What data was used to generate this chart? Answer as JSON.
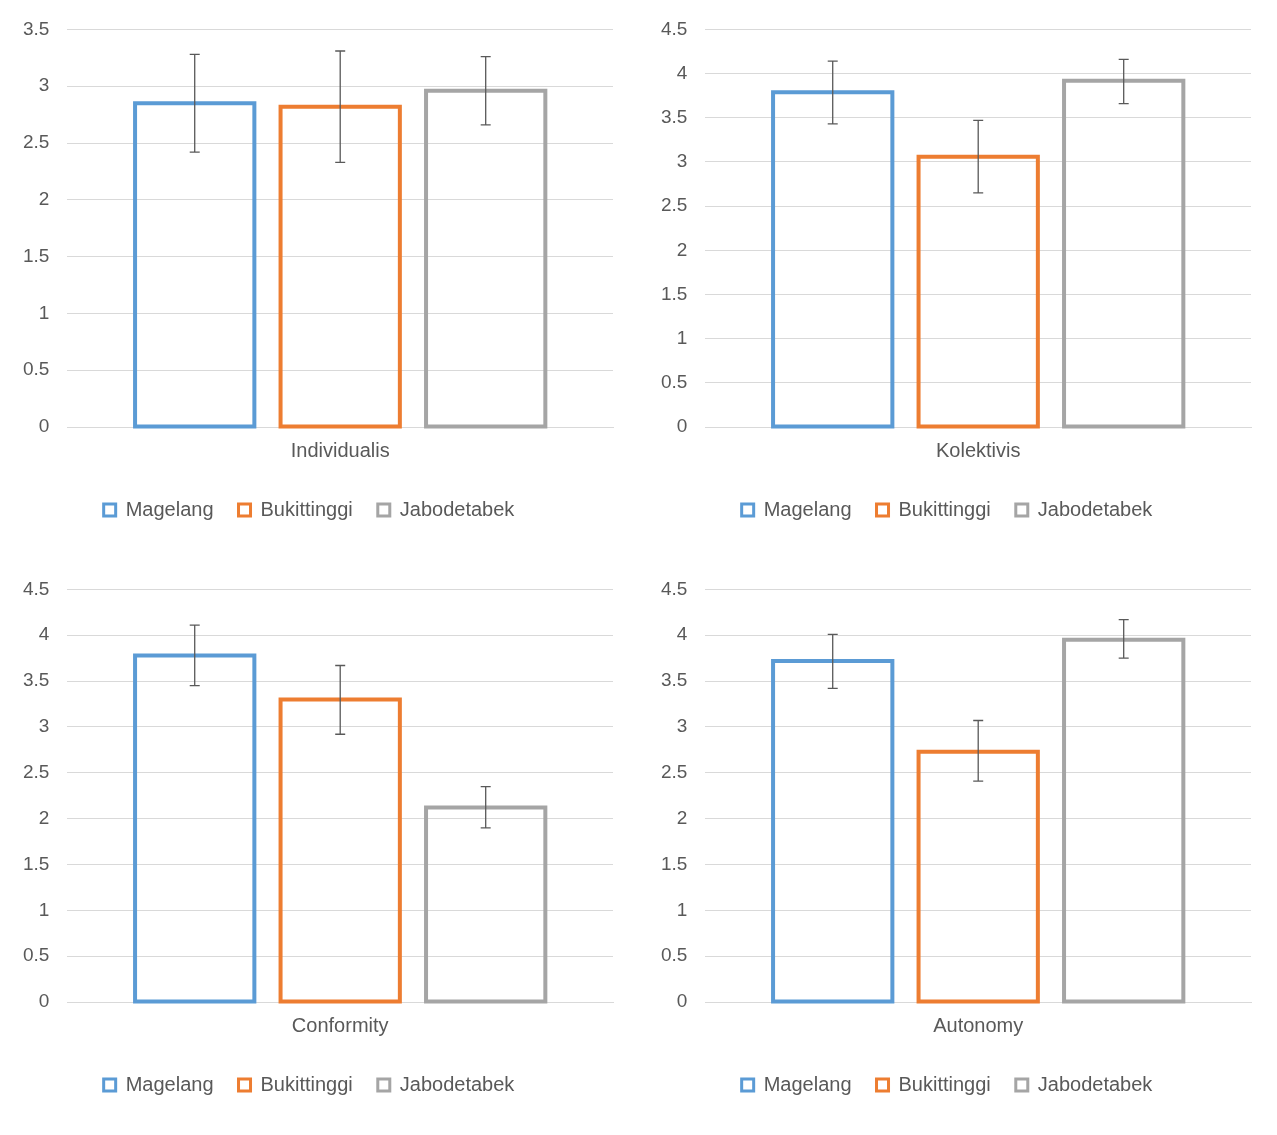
{
  "chart_data": [
    {
      "type": "bar",
      "categories": [
        "Individualis"
      ],
      "series": [
        {
          "name": "Magelang",
          "color": "#5b9bd5",
          "values": [
            2.85
          ],
          "errors": [
            [
              2.42,
              3.28
            ]
          ]
        },
        {
          "name": "Bukittinggi",
          "color": "#ed7d31",
          "values": [
            2.82
          ],
          "errors": [
            [
              2.33,
              3.31
            ]
          ]
        },
        {
          "name": "Jabodetabek",
          "color": "#a5a5a5",
          "values": [
            2.96
          ],
          "errors": [
            [
              2.66,
              3.26
            ]
          ]
        }
      ],
      "ylim": [
        0,
        3.5
      ],
      "yticks": [
        0,
        0.5,
        1,
        1.5,
        2,
        2.5,
        3,
        3.5
      ],
      "grid": "y",
      "legend": "bottom"
    },
    {
      "type": "bar",
      "categories": [
        "Kolektivis"
      ],
      "series": [
        {
          "name": "Magelang",
          "color": "#5b9bd5",
          "values": [
            3.79
          ],
          "errors": [
            [
              3.43,
              4.14
            ]
          ]
        },
        {
          "name": "Bukittinggi",
          "color": "#ed7d31",
          "values": [
            3.06
          ],
          "errors": [
            [
              2.65,
              3.47
            ]
          ]
        },
        {
          "name": "Jabodetabek",
          "color": "#a5a5a5",
          "values": [
            3.92
          ],
          "errors": [
            [
              3.66,
              4.16
            ]
          ]
        }
      ],
      "ylim": [
        0,
        4.5
      ],
      "yticks": [
        0,
        0.5,
        1,
        1.5,
        2,
        2.5,
        3,
        3.5,
        4,
        4.5
      ],
      "grid": "y",
      "legend": "bottom"
    },
    {
      "type": "bar",
      "categories": [
        "Conformity"
      ],
      "series": [
        {
          "name": "Magelang",
          "color": "#5b9bd5",
          "values": [
            3.78
          ],
          "errors": [
            [
              3.45,
              4.11
            ]
          ]
        },
        {
          "name": "Bukittinggi",
          "color": "#ed7d31",
          "values": [
            3.3
          ],
          "errors": [
            [
              2.92,
              3.67
            ]
          ]
        },
        {
          "name": "Jabodetabek",
          "color": "#a5a5a5",
          "values": [
            2.12
          ],
          "errors": [
            [
              1.9,
              2.35
            ]
          ]
        }
      ],
      "ylim": [
        0,
        4.5
      ],
      "yticks": [
        0,
        0.5,
        1,
        1.5,
        2,
        2.5,
        3,
        3.5,
        4,
        4.5
      ],
      "grid": "y",
      "legend": "bottom"
    },
    {
      "type": "bar",
      "categories": [
        "Autonomy"
      ],
      "series": [
        {
          "name": "Magelang",
          "color": "#5b9bd5",
          "values": [
            3.72
          ],
          "errors": [
            [
              3.42,
              4.01
            ]
          ]
        },
        {
          "name": "Bukittinggi",
          "color": "#ed7d31",
          "values": [
            2.73
          ],
          "errors": [
            [
              2.41,
              3.07
            ]
          ]
        },
        {
          "name": "Jabodetabek",
          "color": "#a5a5a5",
          "values": [
            3.95
          ],
          "errors": [
            [
              3.75,
              4.17
            ]
          ]
        }
      ],
      "ylim": [
        0,
        4.5
      ],
      "yticks": [
        0,
        0.5,
        1,
        1.5,
        2,
        2.5,
        3,
        3.5,
        4,
        4.5
      ],
      "grid": "y",
      "legend": "bottom"
    }
  ]
}
